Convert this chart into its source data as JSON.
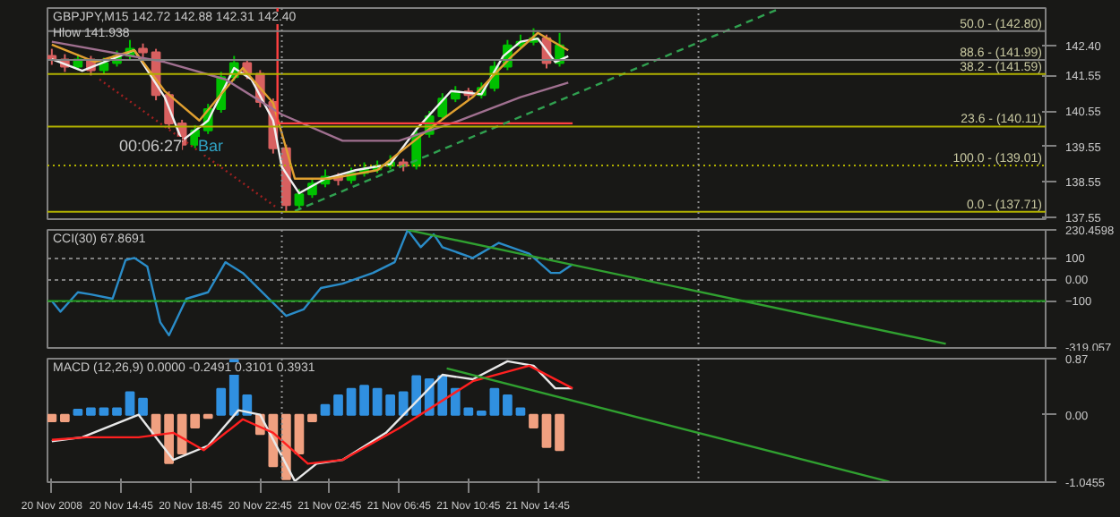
{
  "chart_data": [
    {
      "type": "candlestick",
      "title": "GBPJPY,M15 142.72 142.88 142.31 142.40",
      "annotations": [
        "Hlow 141.938",
        "00:06:27",
        "Bar"
      ],
      "x": [
        "2008-11-20T10:45",
        "2008-11-20T11:30",
        "2008-11-20T12:15",
        "2008-11-20T13:00",
        "2008-11-20T13:45",
        "2008-11-20T14:30",
        "2008-11-20T15:15",
        "2008-11-20T16:00",
        "2008-11-20T16:45",
        "2008-11-20T17:30",
        "2008-11-20T18:15",
        "2008-11-20T19:00",
        "2008-11-20T19:45",
        "2008-11-20T20:30",
        "2008-11-20T21:15",
        "2008-11-20T22:00",
        "2008-11-20T22:45",
        "2008-11-20T23:30",
        "2008-11-21T00:15",
        "2008-11-21T01:00",
        "2008-11-21T01:45",
        "2008-11-21T02:30",
        "2008-11-21T03:15",
        "2008-11-21T04:00",
        "2008-11-21T04:45",
        "2008-11-21T05:30",
        "2008-11-21T06:15",
        "2008-11-21T07:00",
        "2008-11-21T07:45",
        "2008-11-21T08:30",
        "2008-11-21T09:15",
        "2008-11-21T10:00",
        "2008-11-21T10:45",
        "2008-11-21T11:30",
        "2008-11-21T12:15",
        "2008-11-21T13:00",
        "2008-11-21T13:45",
        "2008-11-21T14:30",
        "2008-11-21T15:15",
        "2008-11-21T16:00"
      ],
      "ohlc": [
        [
          142.1,
          142.3,
          141.85,
          142.0
        ],
        [
          142.0,
          142.15,
          141.65,
          141.8
        ],
        [
          141.8,
          142.15,
          141.7,
          142.0
        ],
        [
          142.0,
          142.1,
          141.55,
          141.7
        ],
        [
          141.7,
          142.05,
          141.6,
          141.9
        ],
        [
          141.9,
          142.25,
          141.8,
          142.1
        ],
        [
          142.1,
          142.55,
          142.0,
          142.3
        ],
        [
          142.3,
          142.45,
          142.05,
          142.2
        ],
        [
          142.2,
          142.3,
          140.85,
          141.0
        ],
        [
          141.0,
          141.1,
          140.05,
          140.2
        ],
        [
          140.2,
          140.3,
          139.45,
          139.6
        ],
        [
          139.6,
          140.15,
          139.5,
          140.0
        ],
        [
          140.0,
          140.75,
          139.9,
          140.6
        ],
        [
          140.6,
          141.65,
          140.5,
          141.5
        ],
        [
          141.5,
          142.1,
          141.4,
          141.9
        ],
        [
          141.9,
          142.0,
          141.45,
          141.6
        ],
        [
          141.6,
          141.7,
          140.65,
          140.8
        ],
        [
          140.8,
          140.9,
          139.35,
          139.5
        ],
        [
          139.5,
          139.6,
          137.71,
          137.9
        ],
        [
          137.9,
          138.35,
          137.8,
          138.2
        ],
        [
          138.2,
          138.65,
          138.1,
          138.5
        ],
        [
          138.5,
          138.9,
          138.4,
          138.7
        ],
        [
          138.7,
          138.8,
          138.45,
          138.6
        ],
        [
          138.6,
          138.95,
          138.5,
          138.8
        ],
        [
          138.8,
          139.1,
          138.7,
          138.9
        ],
        [
          138.9,
          139.15,
          138.8,
          139.0
        ],
        [
          139.0,
          139.3,
          138.9,
          139.1
        ],
        [
          139.1,
          139.2,
          138.85,
          139.0
        ],
        [
          139.0,
          140.05,
          138.9,
          139.9
        ],
        [
          139.9,
          140.55,
          139.8,
          140.4
        ],
        [
          140.4,
          141.05,
          140.3,
          140.9
        ],
        [
          140.9,
          141.25,
          140.8,
          141.1
        ],
        [
          141.1,
          141.2,
          140.85,
          141.0
        ],
        [
          141.0,
          141.35,
          140.9,
          141.2
        ],
        [
          141.2,
          141.95,
          141.1,
          141.8
        ],
        [
          141.8,
          142.55,
          141.7,
          142.4
        ],
        [
          142.4,
          142.7,
          142.3,
          142.5
        ],
        [
          142.5,
          142.88,
          142.4,
          142.6
        ],
        [
          142.6,
          142.7,
          141.75,
          141.9
        ],
        [
          141.9,
          142.75,
          141.8,
          142.4
        ]
      ],
      "colors": [
        "#d86060",
        "#d86060",
        "#00c000",
        "#d86060",
        "#00c000",
        "#00c000",
        "#00c000",
        "#d86060",
        "#d86060",
        "#d86060",
        "#d86060",
        "#00c000",
        "#00c000",
        "#00c000",
        "#00c000",
        "#d86060",
        "#d86060",
        "#d86060",
        "#d86060",
        "#00c000",
        "#00c000",
        "#00c000",
        "#d86060",
        "#00c000",
        "#00c000",
        "#00c000",
        "#00c000",
        "#d86060",
        "#00c000",
        "#00c000",
        "#00c000",
        "#00c000",
        "#d86060",
        "#00c000",
        "#00c000",
        "#00c000",
        "#00c000",
        "#00c000",
        "#d86060",
        "#00c000"
      ],
      "series": [
        {
          "type": "line",
          "color": "#f0f0f0",
          "x": [
            "2008-11-20T10:45",
            "2008-11-20T12:30",
            "2008-11-20T15:30",
            "2008-11-20T17:15",
            "2008-11-20T18:15",
            "2008-11-20T19:45",
            "2008-11-20T21:15",
            "2008-11-20T22:15",
            "2008-11-20T23:30",
            "2008-11-21T00:00",
            "2008-11-21T01:00",
            "2008-11-21T02:30",
            "2008-11-21T04:15",
            "2008-11-21T06:15",
            "2008-11-21T07:45",
            "2008-11-21T09:45",
            "2008-11-21T11:30",
            "2008-11-21T12:45",
            "2008-11-21T13:45",
            "2008-11-21T14:45",
            "2008-11-21T15:45",
            "2008-11-21T16:30"
          ],
          "values": [
            142.01,
            141.68,
            142.26,
            140.94,
            139.71,
            140.28,
            141.76,
            141.44,
            140.28,
            138.97,
            138.23,
            138.64,
            138.88,
            139.05,
            140.03,
            141.11,
            141.02,
            142.09,
            142.5,
            142.59,
            141.93,
            142.09
          ]
        },
        {
          "type": "line",
          "color": "#e0a030",
          "x": [
            "2008-11-20T10:45",
            "2008-11-20T13:15",
            "2008-11-20T15:30",
            "2008-11-20T17:15",
            "2008-11-20T19:15",
            "2008-11-20T21:45",
            "2008-11-20T23:30",
            "2008-11-21T00:45",
            "2008-11-21T02:45",
            "2008-11-21T05:30",
            "2008-11-21T08:15",
            "2008-11-21T11:00",
            "2008-11-21T13:15",
            "2008-11-21T14:45",
            "2008-11-21T16:30"
          ],
          "values": [
            142.42,
            141.93,
            142.26,
            141.11,
            140.28,
            141.76,
            140.77,
            138.64,
            138.64,
            138.88,
            139.95,
            140.94,
            142.09,
            142.75,
            142.26
          ]
        },
        {
          "type": "line",
          "color": "#a07090",
          "x": [
            "2008-11-20T10:45",
            "2008-11-20T17:15",
            "2008-11-20T20:45",
            "2008-11-21T00:00",
            "2008-11-21T03:30",
            "2008-11-21T06:45",
            "2008-11-21T10:15",
            "2008-11-21T13:45",
            "2008-11-21T16:30"
          ],
          "values": [
            142.5,
            141.93,
            141.44,
            140.45,
            139.71,
            139.71,
            140.28,
            140.94,
            141.35
          ]
        },
        {
          "type": "line",
          "color": "#ff4040",
          "x": [
            "2008-11-20T23:45",
            "2008-11-20T23:45",
            "2008-11-21T16:45"
          ],
          "values": [
            143.45,
            140.2,
            140.2
          ]
        },
        {
          "type": "line",
          "color": "#30a050",
          "line_style": "dashed",
          "x": [
            "2008-11-21T00:45",
            "2008-11-22T04:45"
          ],
          "values": [
            137.73,
            143.45
          ]
        },
        {
          "type": "line",
          "color": "#a02020",
          "line_style": "dotted",
          "x": [
            "2008-11-20T13:30",
            "2008-11-20T23:45"
          ],
          "values": [
            141.44,
            137.81
          ]
        }
      ],
      "ref_lines": [
        {
          "axis": "y",
          "value": 142.8,
          "label": "50.0 - (142.80)",
          "color": "#808080"
        },
        {
          "axis": "y",
          "value": 141.99,
          "label": "88.6 - (141.99)",
          "color": "#808080"
        },
        {
          "axis": "y",
          "value": 141.59,
          "label": "38.2 - (141.59)",
          "color": "#b0b000"
        },
        {
          "axis": "y",
          "value": 140.11,
          "label": "23.6 - (140.11)",
          "color": "#b0b000"
        },
        {
          "axis": "y",
          "value": 139.01,
          "label": "100.0 - (139.01)",
          "color": "#b0b000",
          "line_style": "dotted"
        },
        {
          "axis": "y",
          "value": 137.71,
          "label": "0.0 - (137.71)",
          "color": "#b0b000"
        },
        {
          "axis": "x",
          "value": "2008-11-21T00:00",
          "color": "#909090",
          "line_style": "dotted"
        },
        {
          "axis": "x",
          "value": "2008-11-22T00:00",
          "color": "#909090",
          "line_style": "dotted"
        }
      ],
      "xlim": [
        "2008-11-20T10:30",
        "2008-11-22T20:00"
      ],
      "ylim": [
        137.5,
        143.45
      ],
      "yticks": [
        137.55,
        138.55,
        139.55,
        140.55,
        141.55,
        {
          "value": 142.4,
          "label": "142.40"
        }
      ],
      "tick_labels": "y"
    },
    {
      "type": "line",
      "title": "CCI(30) 67.8691",
      "series": [
        {
          "color": "#2a8cc8",
          "x": [
            "2008-11-20T10:45",
            "2008-11-20T11:15",
            "2008-11-20T12:15",
            "2008-11-20T13:00",
            "2008-11-20T14:15",
            "2008-11-20T15:00",
            "2008-11-20T15:30",
            "2008-11-20T16:15",
            "2008-11-20T17:00",
            "2008-11-20T17:30",
            "2008-11-20T18:30",
            "2008-11-20T19:45",
            "2008-11-20T20:45",
            "2008-11-20T21:45",
            "2008-11-20T23:00",
            "2008-11-21T00:15",
            "2008-11-21T01:15",
            "2008-11-21T02:15",
            "2008-11-21T03:30",
            "2008-11-21T05:15",
            "2008-11-21T06:30",
            "2008-11-21T07:15",
            "2008-11-21T08:00",
            "2008-11-21T08:45",
            "2008-11-21T09:15",
            "2008-11-21T11:00",
            "2008-11-21T12:30",
            "2008-11-21T14:15",
            "2008-11-21T15:30",
            "2008-11-21T16:00",
            "2008-11-21T16:45"
          ],
          "values": [
            -100,
            -150,
            -60,
            -70,
            -90,
            90,
            100,
            60,
            -200,
            -260,
            -90,
            -60,
            80,
            30,
            -70,
            -170,
            -140,
            -40,
            -20,
            30,
            80,
            230,
            150,
            210,
            150,
            100,
            170,
            120,
            30,
            30,
            70
          ]
        },
        {
          "color": "#30a030",
          "x": [
            "2008-11-21T07:15",
            "2008-11-22T14:15"
          ],
          "values": [
            230,
            -300
          ]
        }
      ],
      "ref_lines": [
        {
          "axis": "y",
          "value": -100,
          "color": "#20a020"
        },
        {
          "axis": "x",
          "value": "2008-11-21T00:00",
          "color": "#909090",
          "line_style": "dotted"
        },
        {
          "axis": "x",
          "value": "2008-11-22T00:00",
          "color": "#909090",
          "line_style": "dotted"
        }
      ],
      "grid": "y",
      "xlim": [
        "2008-11-20T10:30",
        "2008-11-22T20:00"
      ],
      "ylim": [
        -319.057,
        230.4598
      ],
      "yticks": [
        {
          "value": 230.4598,
          "label": "230.4598"
        },
        100,
        {
          "value": 0,
          "label": "0.00"
        },
        -100,
        {
          "value": -319.057,
          "label": "-319.057"
        }
      ],
      "tick_labels": "y"
    },
    {
      "type": "bar",
      "title": "MACD (12,26,9) 0.0000 -0.2491 0.3101 0.3931",
      "x": [
        "2008-11-20T10:45",
        "2008-11-20T11:30",
        "2008-11-20T12:15",
        "2008-11-20T13:00",
        "2008-11-20T13:45",
        "2008-11-20T14:30",
        "2008-11-20T15:15",
        "2008-11-20T16:00",
        "2008-11-20T16:45",
        "2008-11-20T17:30",
        "2008-11-20T18:15",
        "2008-11-20T19:00",
        "2008-11-20T19:45",
        "2008-11-20T20:30",
        "2008-11-20T21:15",
        "2008-11-20T22:00",
        "2008-11-20T22:45",
        "2008-11-20T23:30",
        "2008-11-21T00:15",
        "2008-11-21T01:00",
        "2008-11-21T01:45",
        "2008-11-21T02:30",
        "2008-11-21T03:15",
        "2008-11-21T04:00",
        "2008-11-21T04:45",
        "2008-11-21T05:30",
        "2008-11-21T06:15",
        "2008-11-21T07:00",
        "2008-11-21T07:45",
        "2008-11-21T08:30",
        "2008-11-21T09:15",
        "2008-11-21T10:00",
        "2008-11-21T10:45",
        "2008-11-21T11:30",
        "2008-11-21T12:15",
        "2008-11-21T13:00",
        "2008-11-21T13:45",
        "2008-11-21T14:30",
        "2008-11-21T15:15",
        "2008-11-21T16:00"
      ],
      "values": [
        -0.1,
        -0.1,
        0.08,
        0.1,
        0.1,
        0.1,
        0.35,
        0.25,
        -0.3,
        -0.75,
        -0.6,
        -0.2,
        -0.05,
        0.4,
        0.85,
        0.3,
        -0.3,
        -0.8,
        -1.0,
        -0.6,
        -0.1,
        0.15,
        0.3,
        0.4,
        0.45,
        0.4,
        0.3,
        0.35,
        0.6,
        0.55,
        0.6,
        0.4,
        0.1,
        0.05,
        0.4,
        0.3,
        0.1,
        -0.2,
        -0.5,
        -0.55
      ],
      "colors": [
        "#f0a080",
        "#f0a080",
        "#3090e0",
        "#3090e0",
        "#3090e0",
        "#3090e0",
        "#3090e0",
        "#3090e0",
        "#f0a080",
        "#f0a080",
        "#f0a080",
        "#f0a080",
        "#f0a080",
        "#3090e0",
        "#3090e0",
        "#3090e0",
        "#f0a080",
        "#f0a080",
        "#f0a080",
        "#f0a080",
        "#f0a080",
        "#3090e0",
        "#3090e0",
        "#3090e0",
        "#3090e0",
        "#3090e0",
        "#3090e0",
        "#3090e0",
        "#3090e0",
        "#3090e0",
        "#3090e0",
        "#3090e0",
        "#3090e0",
        "#3090e0",
        "#3090e0",
        "#3090e0",
        "#3090e0",
        "#f0a080",
        "#f0a080",
        "#f0a080"
      ],
      "series": [
        {
          "type": "line",
          "color": "#e8e8e8",
          "x": [
            "2008-11-20T10:45",
            "2008-11-20T12:30",
            "2008-11-20T15:45",
            "2008-11-20T17:45",
            "2008-11-20T19:45",
            "2008-11-20T21:30",
            "2008-11-20T22:45",
            "2008-11-21T00:45",
            "2008-11-21T02:00",
            "2008-11-21T03:30",
            "2008-11-21T06:00",
            "2008-11-21T09:15",
            "2008-11-21T11:00",
            "2008-11-21T13:00",
            "2008-11-21T14:30",
            "2008-11-21T15:45",
            "2008-11-21T16:45"
          ],
          "values": [
            -0.41,
            -0.35,
            0,
            -0.7,
            -0.48,
            0.07,
            0,
            -1.03,
            -0.76,
            -0.7,
            -0.28,
            0.62,
            0.55,
            0.83,
            0.76,
            0.41,
            0.41
          ]
        },
        {
          "type": "line",
          "color": "#ff2020",
          "x": [
            "2008-11-20T10:45",
            "2008-11-20T12:45",
            "2008-11-20T15:45",
            "2008-11-20T17:45",
            "2008-11-20T19:30",
            "2008-11-20T21:45",
            "2008-11-20T23:30",
            "2008-11-21T01:30",
            "2008-11-21T03:30",
            "2008-11-21T06:45",
            "2008-11-21T11:00",
            "2008-11-21T14:15",
            "2008-11-21T16:45"
          ],
          "values": [
            -0.39,
            -0.35,
            -0.35,
            -0.28,
            -0.55,
            -0.07,
            -0.28,
            -0.76,
            -0.7,
            -0.21,
            0.52,
            0.76,
            0.41
          ]
        },
        {
          "type": "line",
          "color": "#30a030",
          "x": [
            "2008-11-21T09:30",
            "2008-11-22T11:00"
          ],
          "values": [
            0.72,
            -1.04
          ]
        }
      ],
      "ref_lines": [
        {
          "axis": "x",
          "value": "2008-11-21T00:00",
          "color": "#909090",
          "line_style": "dotted"
        },
        {
          "axis": "x",
          "value": "2008-11-22T00:00",
          "color": "#909090",
          "line_style": "dotted"
        }
      ],
      "xlim": [
        "2008-11-20T10:30",
        "2008-11-22T20:00"
      ],
      "ylim": [
        -1.0455,
        0.87
      ],
      "yticks": [
        0.87,
        {
          "value": 0,
          "label": "0.00"
        },
        {
          "value": -1.0455,
          "label": "-1.0455"
        }
      ],
      "xticks": [
        {
          "value": "2008-11-20T10:45",
          "label": "20 Nov 2008"
        },
        {
          "value": "2008-11-20T14:45",
          "label": "20 Nov 14:45"
        },
        {
          "value": "2008-11-20T18:45",
          "label": "20 Nov 18:45"
        },
        {
          "value": "2008-11-20T22:45",
          "label": "20 Nov 22:45"
        },
        {
          "value": "2008-11-21T02:45",
          "label": "21 Nov 02:45"
        },
        {
          "value": "2008-11-21T06:45",
          "label": "21 Nov 06:45"
        },
        {
          "value": "2008-11-21T10:45",
          "label": "21 Nov 10:45"
        },
        {
          "value": "2008-11-21T14:45",
          "label": "21 Nov 14:45"
        }
      ]
    }
  ]
}
